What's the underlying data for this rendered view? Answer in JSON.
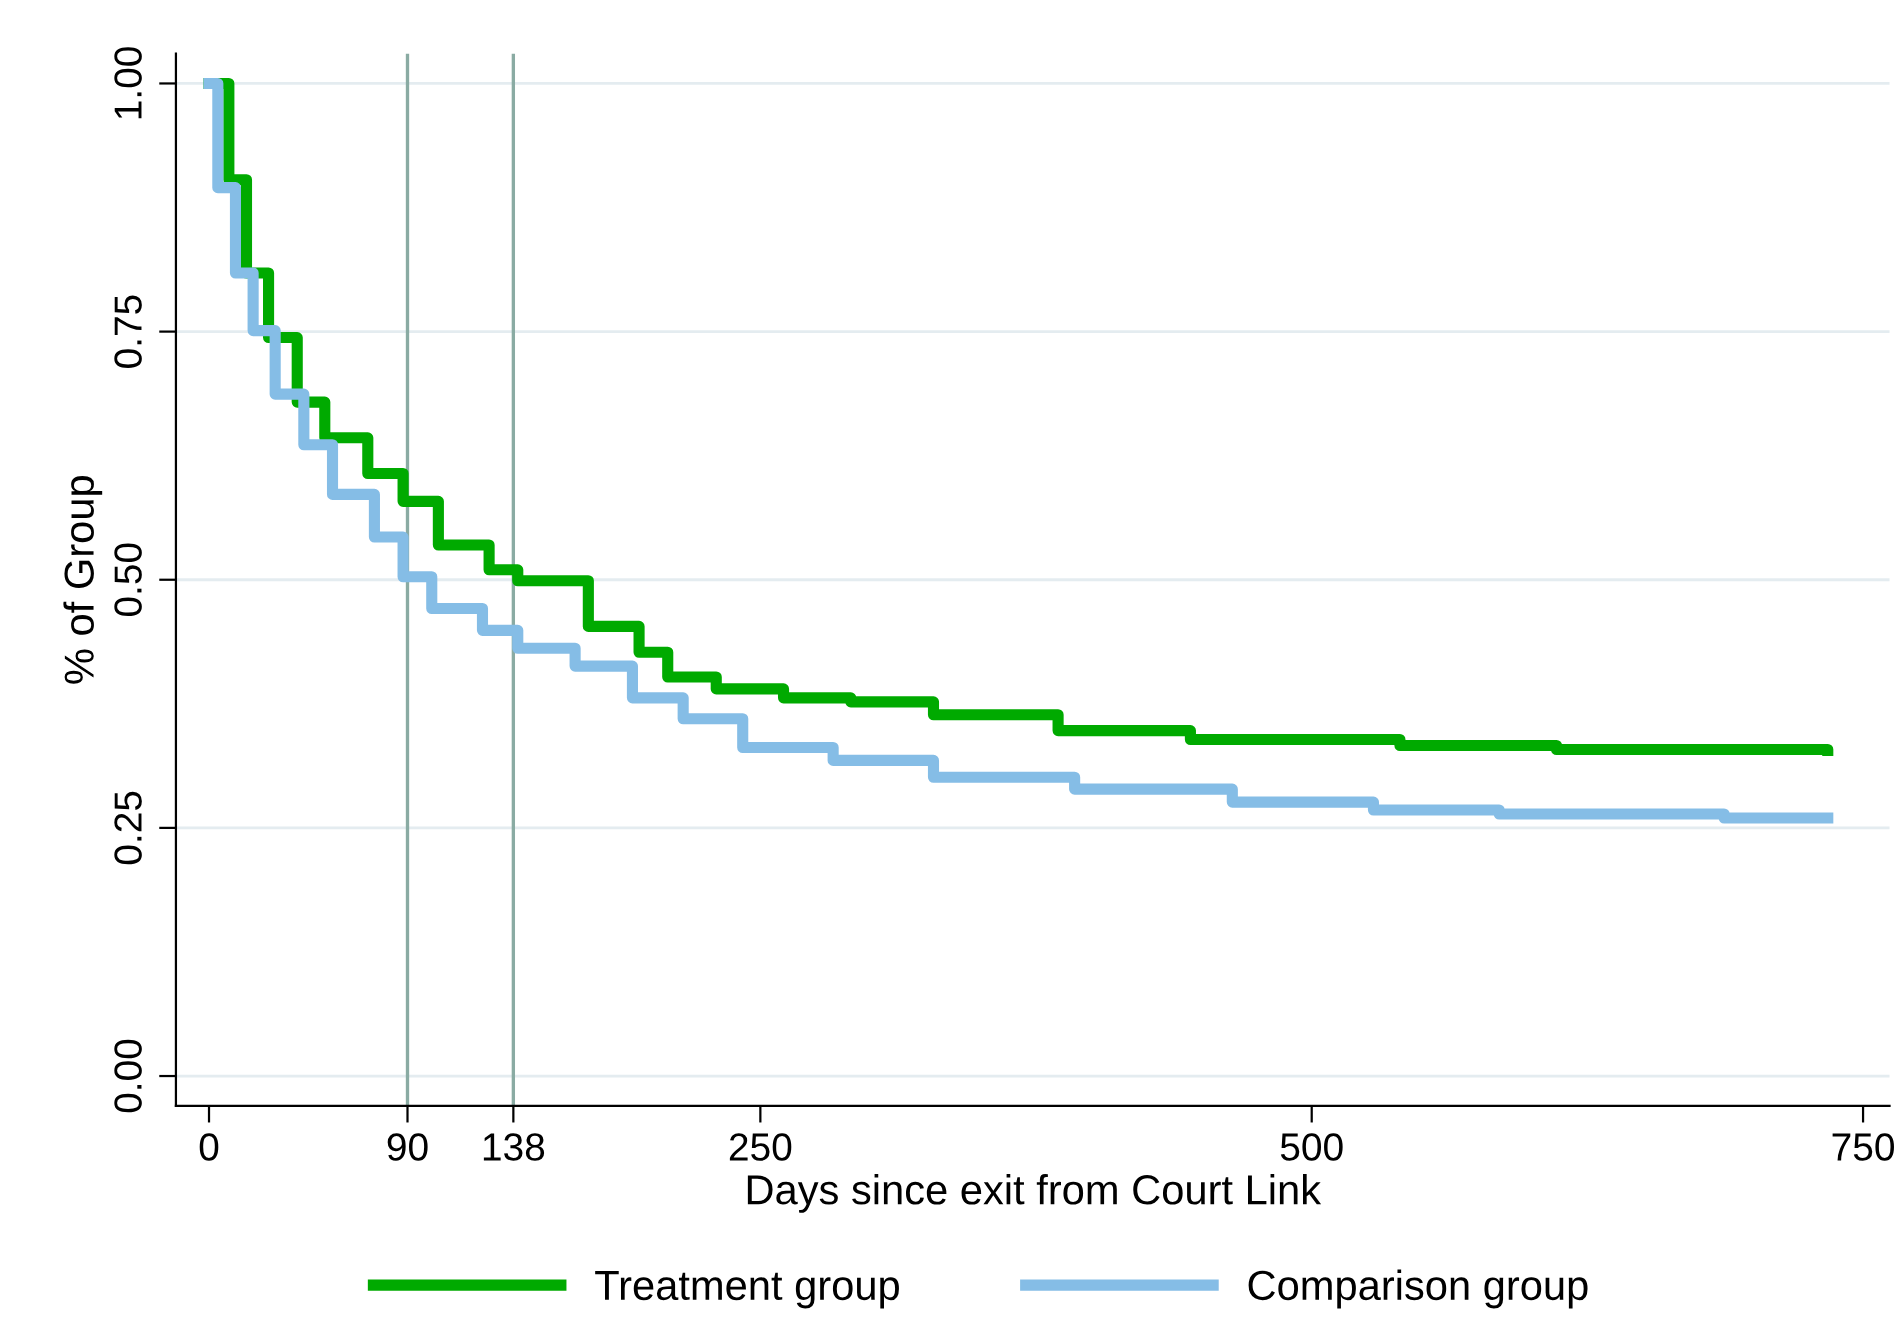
{
  "chart_data": {
    "type": "step",
    "xlabel": "Days since exit from Court Link",
    "ylabel": "% of Group",
    "xlim": [
      -15,
      762
    ],
    "ylim": [
      -0.03,
      1.03
    ],
    "xticks": [
      0,
      90,
      138,
      250,
      500,
      750
    ],
    "yticks": [
      {
        "value": 0,
        "label": "0.00"
      },
      {
        "value": 0.25,
        "label": "0.25"
      },
      {
        "value": 0.5,
        "label": "0.50"
      },
      {
        "value": 0.75,
        "label": "0.75"
      },
      {
        "value": 1,
        "label": "1.00"
      }
    ],
    "grid": "y",
    "legend": "bottom",
    "line_style": "solid",
    "marker": "none",
    "ref_lines": [
      {
        "axis": "x",
        "value": 90,
        "color": "#8aaba3"
      },
      {
        "axis": "x",
        "value": 138,
        "color": "#8aaba3"
      }
    ],
    "series": [
      {
        "name": "Treatment group",
        "color": "#00aa00",
        "x": [
          0,
          9,
          17,
          27,
          40,
          52.5,
          72,
          88,
          104,
          127,
          140,
          172,
          195,
          208,
          230,
          260.5,
          291,
          328.5,
          385,
          445,
          540,
          611,
          734
        ],
        "values": [
          1.0,
          0.903,
          0.809,
          0.744,
          0.679,
          0.643,
          0.607,
          0.579,
          0.535,
          0.51,
          0.499,
          0.453,
          0.427,
          0.402,
          0.39,
          0.381,
          0.377,
          0.364,
          0.348,
          0.339,
          0.333,
          0.329,
          0.328
        ]
      },
      {
        "name": "Comparison group",
        "color": "#85bde6",
        "x": [
          0,
          4,
          12,
          20,
          30,
          43,
          56,
          75,
          88,
          101,
          124,
          140,
          166,
          192,
          215,
          242,
          283,
          328.5,
          392.5,
          464,
          528,
          585,
          687,
          734
        ],
        "values": [
          1.0,
          0.895,
          0.809,
          0.751,
          0.687,
          0.636,
          0.586,
          0.543,
          0.503,
          0.471,
          0.449,
          0.431,
          0.413,
          0.381,
          0.36,
          0.331,
          0.318,
          0.301,
          0.289,
          0.276,
          0.268,
          0.264,
          0.26,
          0.26
        ]
      }
    ]
  }
}
